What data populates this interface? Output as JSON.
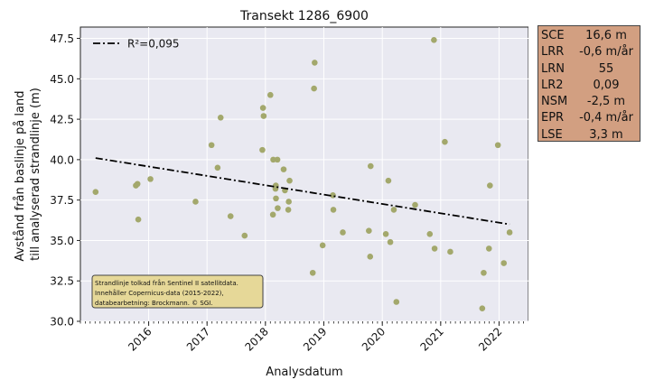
{
  "chart_data": {
    "type": "scatter",
    "title": "Transekt 1286_6900",
    "xlabel": "Analysdatum",
    "ylabel": [
      "Avstånd från baslinje på land",
      "till analyserad strandlinje (m)"
    ],
    "xlim": [
      "2015-05-01",
      "2023-01-01"
    ],
    "ylim": [
      30.0,
      48.2
    ],
    "x_ticks": [
      "2016",
      "2017",
      "2018",
      "2019",
      "2020",
      "2021",
      "2022"
    ],
    "y_ticks": [
      "30.0",
      "32.5",
      "35.0",
      "37.5",
      "40.0",
      "42.5",
      "45.0",
      "47.5"
    ],
    "grid": true,
    "point_color": "#a3a86c",
    "background_color": "#e9e9f1",
    "series": [
      {
        "points": [
          {
            "x": "2015-08-04",
            "y": 38.0
          },
          {
            "x": "2016-04-12",
            "y": 38.4
          },
          {
            "x": "2016-04-22",
            "y": 38.5
          },
          {
            "x": "2016-04-27",
            "y": 36.3
          },
          {
            "x": "2016-07-12",
            "y": 38.8
          },
          {
            "x": "2017-04-20",
            "y": 37.4
          },
          {
            "x": "2017-07-29",
            "y": 40.9
          },
          {
            "x": "2017-09-05",
            "y": 39.5
          },
          {
            "x": "2017-09-24",
            "y": 42.6
          },
          {
            "x": "2017-11-25",
            "y": 36.5
          },
          {
            "x": "2018-02-21",
            "y": 35.3
          },
          {
            "x": "2018-06-12",
            "y": 40.6
          },
          {
            "x": "2018-06-16",
            "y": 43.2
          },
          {
            "x": "2018-06-20",
            "y": 42.7
          },
          {
            "x": "2018-08-01",
            "y": 44.0
          },
          {
            "x": "2018-08-17",
            "y": 36.6
          },
          {
            "x": "2018-08-19",
            "y": 40.0
          },
          {
            "x": "2018-09-02",
            "y": 38.2
          },
          {
            "x": "2018-09-04",
            "y": 38.4
          },
          {
            "x": "2018-09-05",
            "y": 37.6
          },
          {
            "x": "2018-09-14",
            "y": 40.0
          },
          {
            "x": "2018-09-16",
            "y": 37.0
          },
          {
            "x": "2018-10-23",
            "y": 39.4
          },
          {
            "x": "2018-10-31",
            "y": 38.1
          },
          {
            "x": "2018-11-21",
            "y": 36.9
          },
          {
            "x": "2018-11-24",
            "y": 37.4
          },
          {
            "x": "2018-11-29",
            "y": 38.7
          },
          {
            "x": "2019-04-23",
            "y": 33.0
          },
          {
            "x": "2019-05-01",
            "y": 44.4
          },
          {
            "x": "2019-05-05",
            "y": 46.0
          },
          {
            "x": "2019-06-24",
            "y": 34.7
          },
          {
            "x": "2019-08-27",
            "y": 37.8
          },
          {
            "x": "2019-08-30",
            "y": 36.9
          },
          {
            "x": "2019-10-28",
            "y": 35.5
          },
          {
            "x": "2020-04-08",
            "y": 35.6
          },
          {
            "x": "2020-04-16",
            "y": 34.0
          },
          {
            "x": "2020-04-19",
            "y": 39.6
          },
          {
            "x": "2020-07-23",
            "y": 35.4
          },
          {
            "x": "2020-08-08",
            "y": 38.7
          },
          {
            "x": "2020-08-20",
            "y": 34.9
          },
          {
            "x": "2020-09-11",
            "y": 36.9
          },
          {
            "x": "2020-09-27",
            "y": 31.2
          },
          {
            "x": "2021-01-22",
            "y": 37.2
          },
          {
            "x": "2021-04-24",
            "y": 35.4
          },
          {
            "x": "2021-05-20",
            "y": 47.4
          },
          {
            "x": "2021-05-24",
            "y": 34.5
          },
          {
            "x": "2021-07-27",
            "y": 41.1
          },
          {
            "x": "2021-08-30",
            "y": 34.3
          },
          {
            "x": "2022-03-18",
            "y": 30.8
          },
          {
            "x": "2022-03-27",
            "y": 33.0
          },
          {
            "x": "2022-04-29",
            "y": 34.5
          },
          {
            "x": "2022-05-05",
            "y": 38.4
          },
          {
            "x": "2022-06-24",
            "y": 40.9
          },
          {
            "x": "2022-07-31",
            "y": 33.6
          },
          {
            "x": "2022-09-05",
            "y": 35.5
          }
        ]
      }
    ],
    "trend_line": {
      "label": "R²=0,095",
      "color": "#000000",
      "start": {
        "x": "2015-08-04",
        "y": 40.1
      },
      "end": {
        "x": "2022-09-05",
        "y": 36.0
      }
    },
    "legend_placement": "top-left",
    "annotation": {
      "lines": [
        "Strandlinje tolkad från Sentinel II satellitdata.",
        "Innehåller Copernicus-data (2015-2022),",
        "databearbetning: Brockmann. © SGI."
      ],
      "background_color": "#e6d898",
      "placement": "bottom-left"
    }
  },
  "stats": [
    {
      "key": "SCE",
      "value": "16,6 m"
    },
    {
      "key": "LRR",
      "value": "-0,6 m/år"
    },
    {
      "key": "LRN",
      "value": "55"
    },
    {
      "key": "LR2",
      "value": "0,09"
    },
    {
      "key": "NSM",
      "value": "-2,5 m"
    },
    {
      "key": "EPR",
      "value": "-0,4 m/år"
    },
    {
      "key": "LSE",
      "value": "3,3 m"
    }
  ],
  "stats_box_color": "#d29f81"
}
